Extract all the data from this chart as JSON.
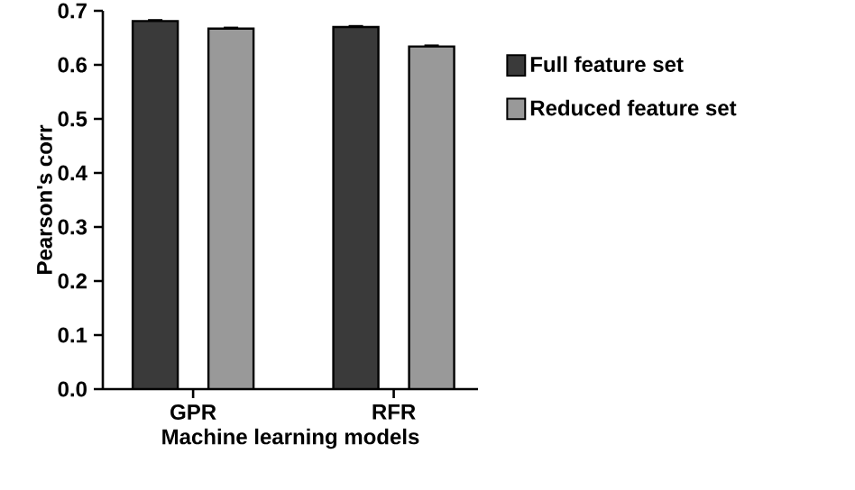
{
  "chart_data": {
    "type": "bar",
    "xlabel": "Machine learning models",
    "ylabel": "Pearson's corr",
    "categories": [
      "GPR",
      "RFR"
    ],
    "series": [
      {
        "name": "Full feature set",
        "color": "#3a3a3a",
        "values": [
          0.681,
          0.67
        ],
        "errors": [
          0.002,
          0.002
        ]
      },
      {
        "name": "Reduced feature set",
        "color": "#999999",
        "values": [
          0.667,
          0.634
        ],
        "errors": [
          0.002,
          0.002
        ]
      }
    ],
    "ylim": [
      0,
      0.7
    ],
    "yticks": [
      {
        "value": 0,
        "label": "0.0"
      },
      0.1,
      0.2,
      0.3,
      0.4,
      0.5,
      0.6,
      0.7
    ],
    "grid": false,
    "legend": "right"
  }
}
